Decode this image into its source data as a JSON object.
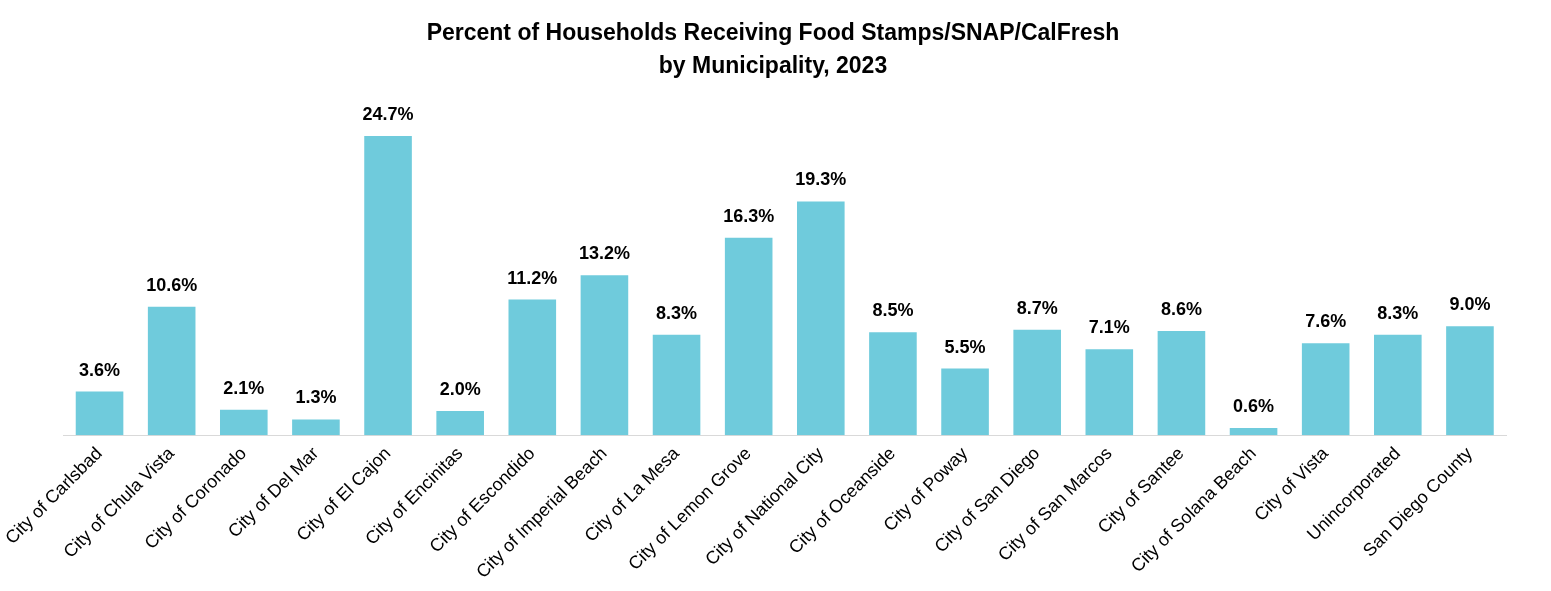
{
  "chart_data": {
    "type": "bar",
    "title": "Percent of Households Receiving Food Stamps/SNAP/CalFresh\nby Municipality, 2023",
    "categories": [
      "City of Carlsbad",
      "City of Chula Vista",
      "City of Coronado",
      "City of Del Mar",
      "City of El Cajon",
      "City of Encinitas",
      "City of Escondido",
      "City of Imperial Beach",
      "City of La Mesa",
      "City of Lemon Grove",
      "City of National City",
      "City of Oceanside",
      "City of Poway",
      "City of San Diego",
      "City of San Marcos",
      "City of Santee",
      "City of Solana Beach",
      "City of Vista",
      "Unincorporated",
      "San Diego County"
    ],
    "values": [
      3.6,
      10.6,
      2.1,
      1.3,
      24.7,
      2.0,
      11.2,
      13.2,
      8.3,
      16.3,
      19.3,
      8.5,
      5.5,
      8.7,
      7.1,
      8.6,
      0.6,
      7.6,
      8.3,
      9.0
    ],
    "value_labels": [
      "3.6%",
      "10.6%",
      "2.1%",
      "1.3%",
      "24.7%",
      "2.0%",
      "11.2%",
      "13.2%",
      "8.3%",
      "16.3%",
      "19.3%",
      "8.5%",
      "5.5%",
      "8.7%",
      "7.1%",
      "8.6%",
      "0.6%",
      "7.6%",
      "8.3%",
      "9.0%"
    ],
    "color": "#6fcbdc",
    "grid": false,
    "legend": false
  }
}
